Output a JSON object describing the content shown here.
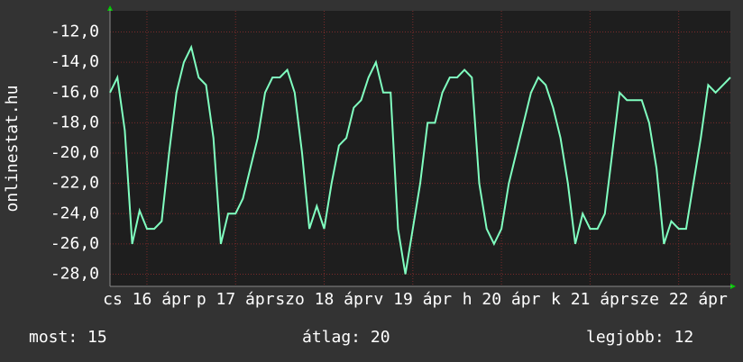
{
  "chart_data": {
    "type": "line",
    "y_label": "onlinestat.hu",
    "x": [
      0,
      2,
      4,
      6,
      8,
      10,
      12,
      14,
      16,
      18,
      20,
      22,
      24,
      26,
      28,
      30,
      32,
      34,
      36,
      38,
      40,
      42,
      44,
      46,
      48,
      50,
      52,
      54,
      56,
      58,
      60,
      62,
      64,
      66,
      68,
      70,
      72,
      74,
      76,
      78,
      80,
      82,
      84,
      86,
      88,
      90,
      92,
      94,
      96,
      98,
      100,
      102,
      104,
      106,
      108,
      110,
      112,
      114,
      116,
      118,
      120,
      122,
      124,
      126,
      128,
      130,
      132,
      134,
      136,
      138,
      140,
      142,
      144,
      146,
      148,
      150,
      152,
      154,
      156,
      158,
      160,
      162,
      164,
      166,
      168
    ],
    "values": [
      -16,
      -15,
      -18.5,
      -26,
      -23.8,
      -25,
      -25,
      -24.5,
      -20,
      -16,
      -14,
      -13,
      -15,
      -15.5,
      -19,
      -26,
      -24,
      -24,
      -23,
      -21,
      -19,
      -16,
      -15,
      -15,
      -14.5,
      -16,
      -20,
      -25,
      -23.5,
      -25,
      -22,
      -19.5,
      -19,
      -17,
      -16.5,
      -15,
      -14,
      -16,
      -16,
      -25,
      -28,
      -25,
      -22,
      -18,
      -18,
      -16,
      -15,
      -15,
      -14.5,
      -15,
      -22,
      -25,
      -26,
      -25,
      -22,
      -20,
      -18,
      -16,
      -15,
      -15.5,
      -17,
      -19,
      -22,
      -26,
      -24,
      -25,
      -25,
      -24,
      -20,
      -16,
      -16.5,
      -16.5,
      -16.5,
      -18,
      -21,
      -26,
      -24.5,
      -25,
      -25,
      -22,
      -19,
      -15.5,
      -16,
      -15.5,
      -15
    ],
    "color": "#80ffc0",
    "xlim": [
      0,
      168
    ],
    "xticks": [
      {
        "value": 10,
        "label": "cs 16 ápr"
      },
      {
        "value": 34,
        "label": "p 17 ápr"
      },
      {
        "value": 58,
        "label": "szo 18 ápr"
      },
      {
        "value": 82,
        "label": "v 19 ápr"
      },
      {
        "value": 106,
        "label": "h 20 ápr"
      },
      {
        "value": 130,
        "label": "k 21 ápr"
      },
      {
        "value": 154,
        "label": "sze 22 ápr"
      }
    ],
    "ylim": [
      -28.8,
      -10.6
    ],
    "yticks": [
      {
        "value": -28,
        "label": "-28,0"
      },
      {
        "value": -26,
        "label": "-26,0"
      },
      {
        "value": -24,
        "label": "-24,0"
      },
      {
        "value": -22,
        "label": "-22,0"
      },
      {
        "value": -20,
        "label": "-20,0"
      },
      {
        "value": -18,
        "label": "-18,0"
      },
      {
        "value": -16,
        "label": "-16,0"
      },
      {
        "value": -14,
        "label": "-14,0"
      },
      {
        "value": -12,
        "label": "-12,0"
      }
    ],
    "grid": true,
    "stats": [
      "most: 15",
      "átlag: 20",
      "legjobb: 12"
    ]
  }
}
